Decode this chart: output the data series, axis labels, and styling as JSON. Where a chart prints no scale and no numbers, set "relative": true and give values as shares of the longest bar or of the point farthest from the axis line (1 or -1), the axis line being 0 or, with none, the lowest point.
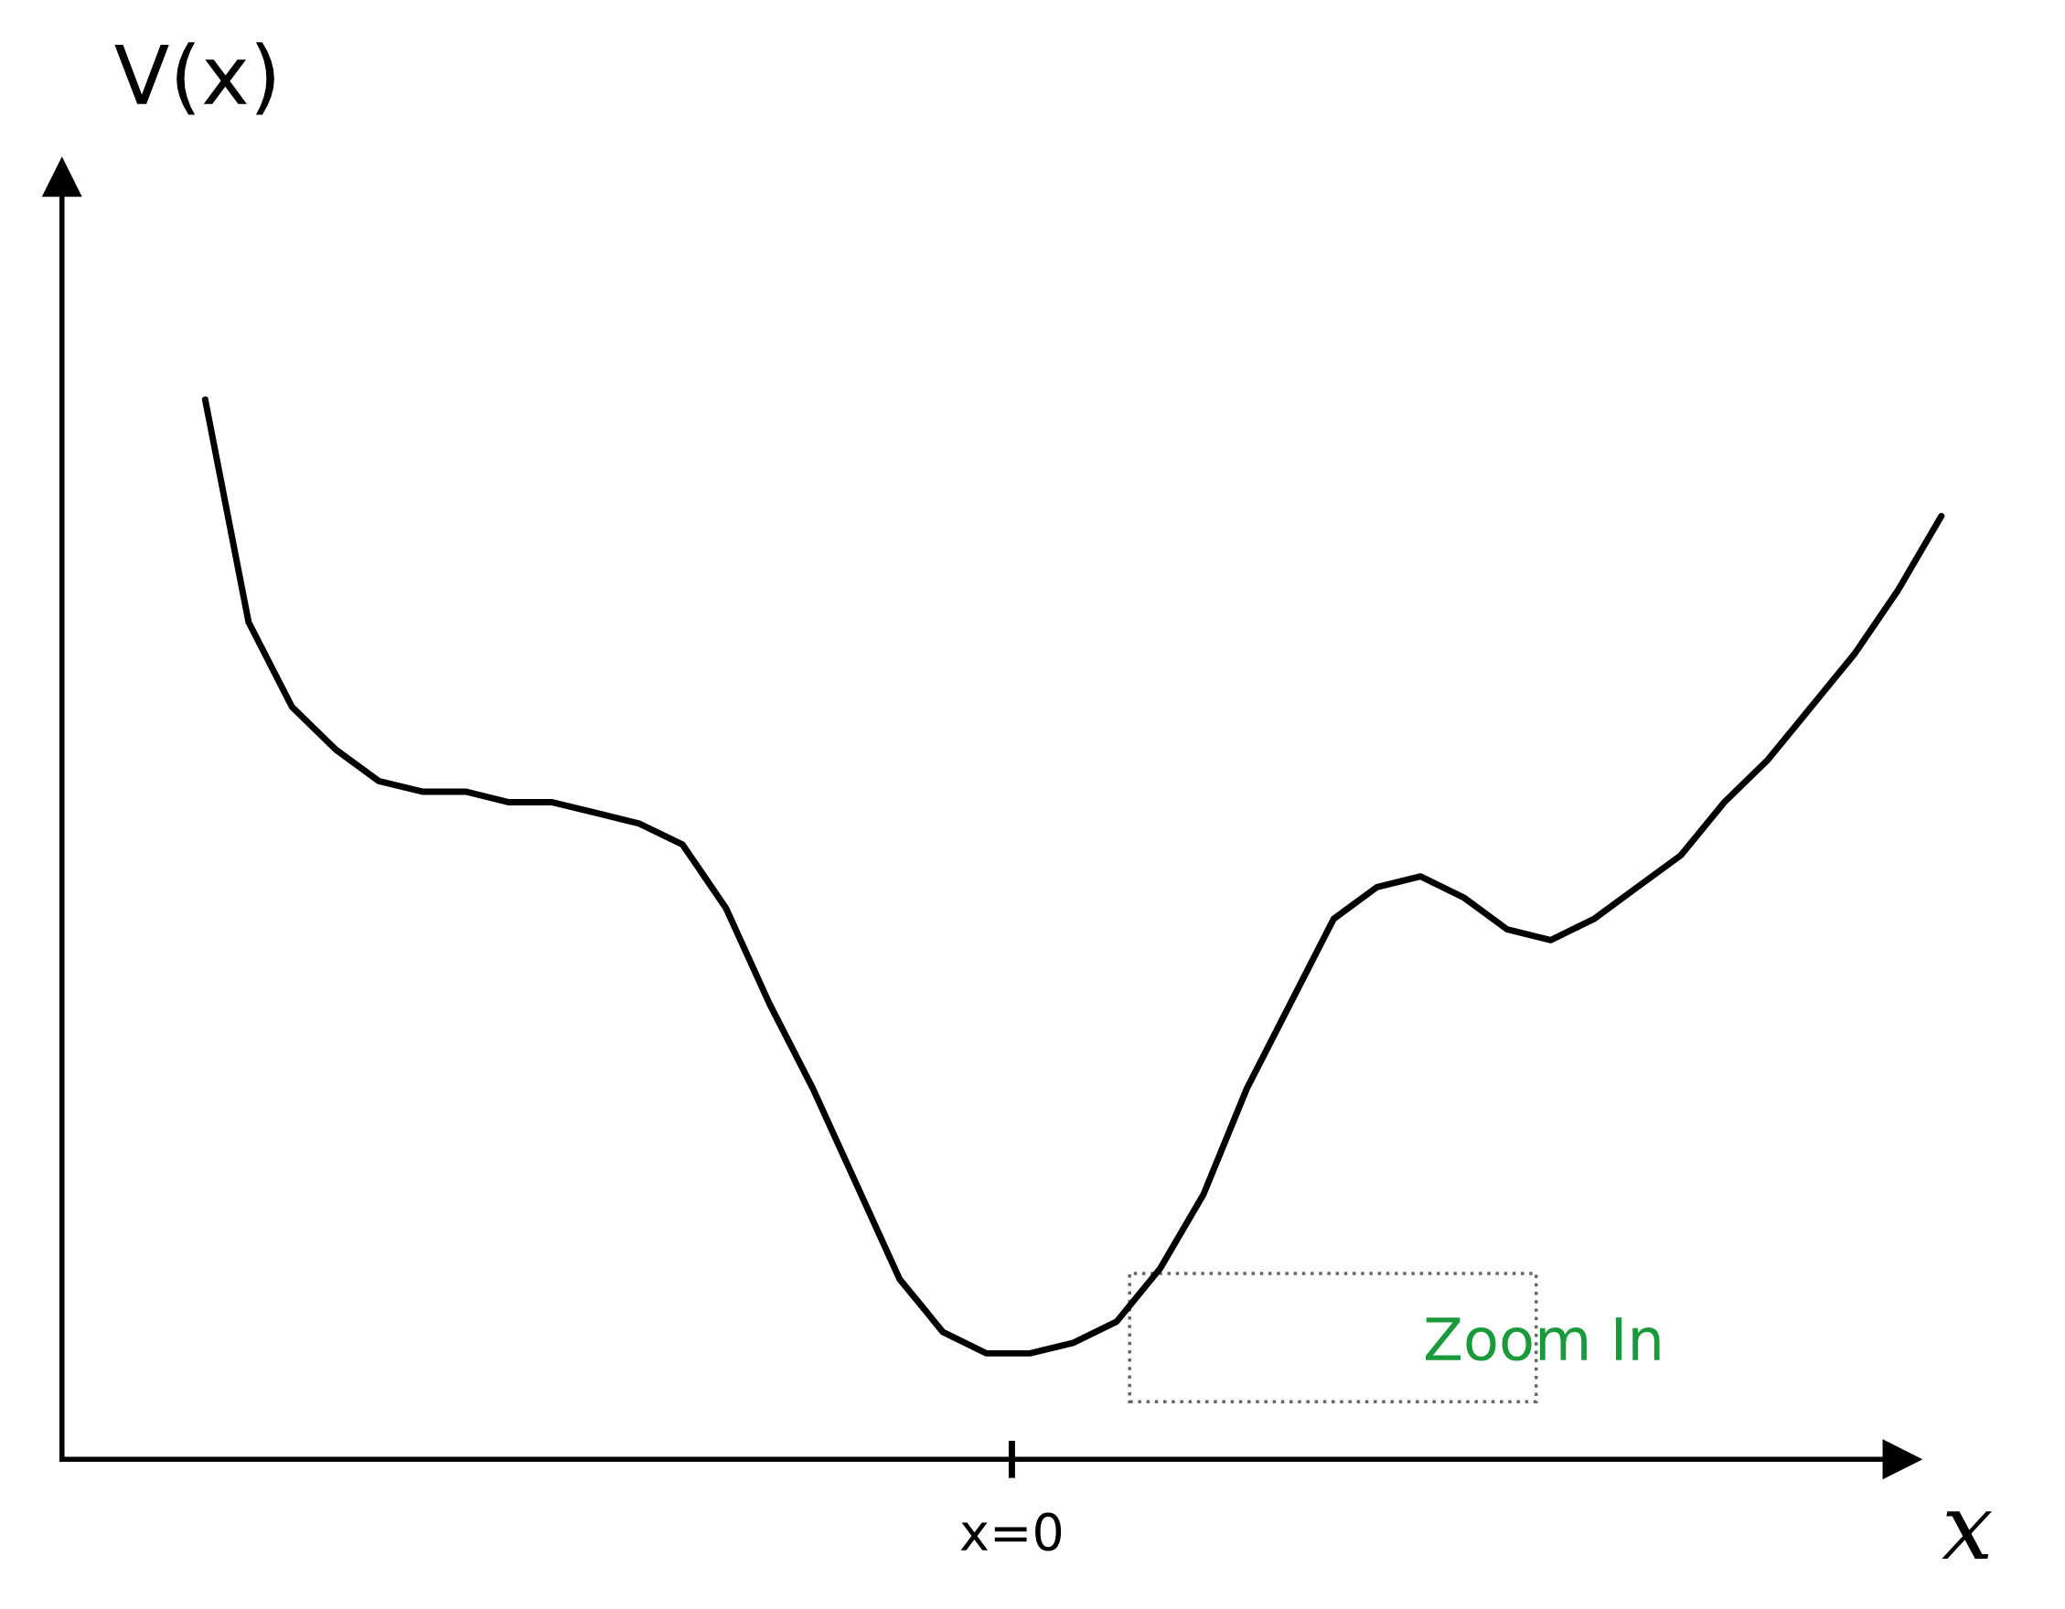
{
  "chart_data": {
    "type": "line",
    "relative": true,
    "ylabel": "V(x)",
    "xlabel": "x",
    "categories": [
      null,
      null,
      null,
      null,
      null,
      null,
      null,
      null,
      null,
      null,
      null,
      null,
      null,
      null,
      null,
      null,
      null,
      null,
      null,
      null,
      null,
      null,
      null,
      null,
      null,
      null,
      null,
      null,
      null,
      null,
      null,
      null,
      null,
      null,
      null,
      null,
      null,
      null,
      null,
      null,
      null
    ],
    "series": [
      {
        "color": "#000000",
        "values": [
          1.0,
          0.79,
          0.71,
          0.67,
          0.64,
          0.63,
          0.63,
          0.62,
          0.62,
          0.61,
          0.6,
          0.58,
          0.52,
          0.43,
          0.35,
          0.26,
          0.17,
          0.12,
          0.1,
          0.1,
          0.11,
          0.13,
          0.18,
          0.25,
          0.35,
          0.43,
          0.51,
          0.54,
          0.55,
          0.53,
          0.5,
          0.49,
          0.51,
          0.54,
          0.57,
          0.62,
          0.66,
          0.71,
          0.76,
          0.82,
          0.89
        ]
      }
    ],
    "annotations": [
      "x=0",
      "Zoom In"
    ],
    "marker": "none",
    "line_style": "solid",
    "legend": false
  }
}
